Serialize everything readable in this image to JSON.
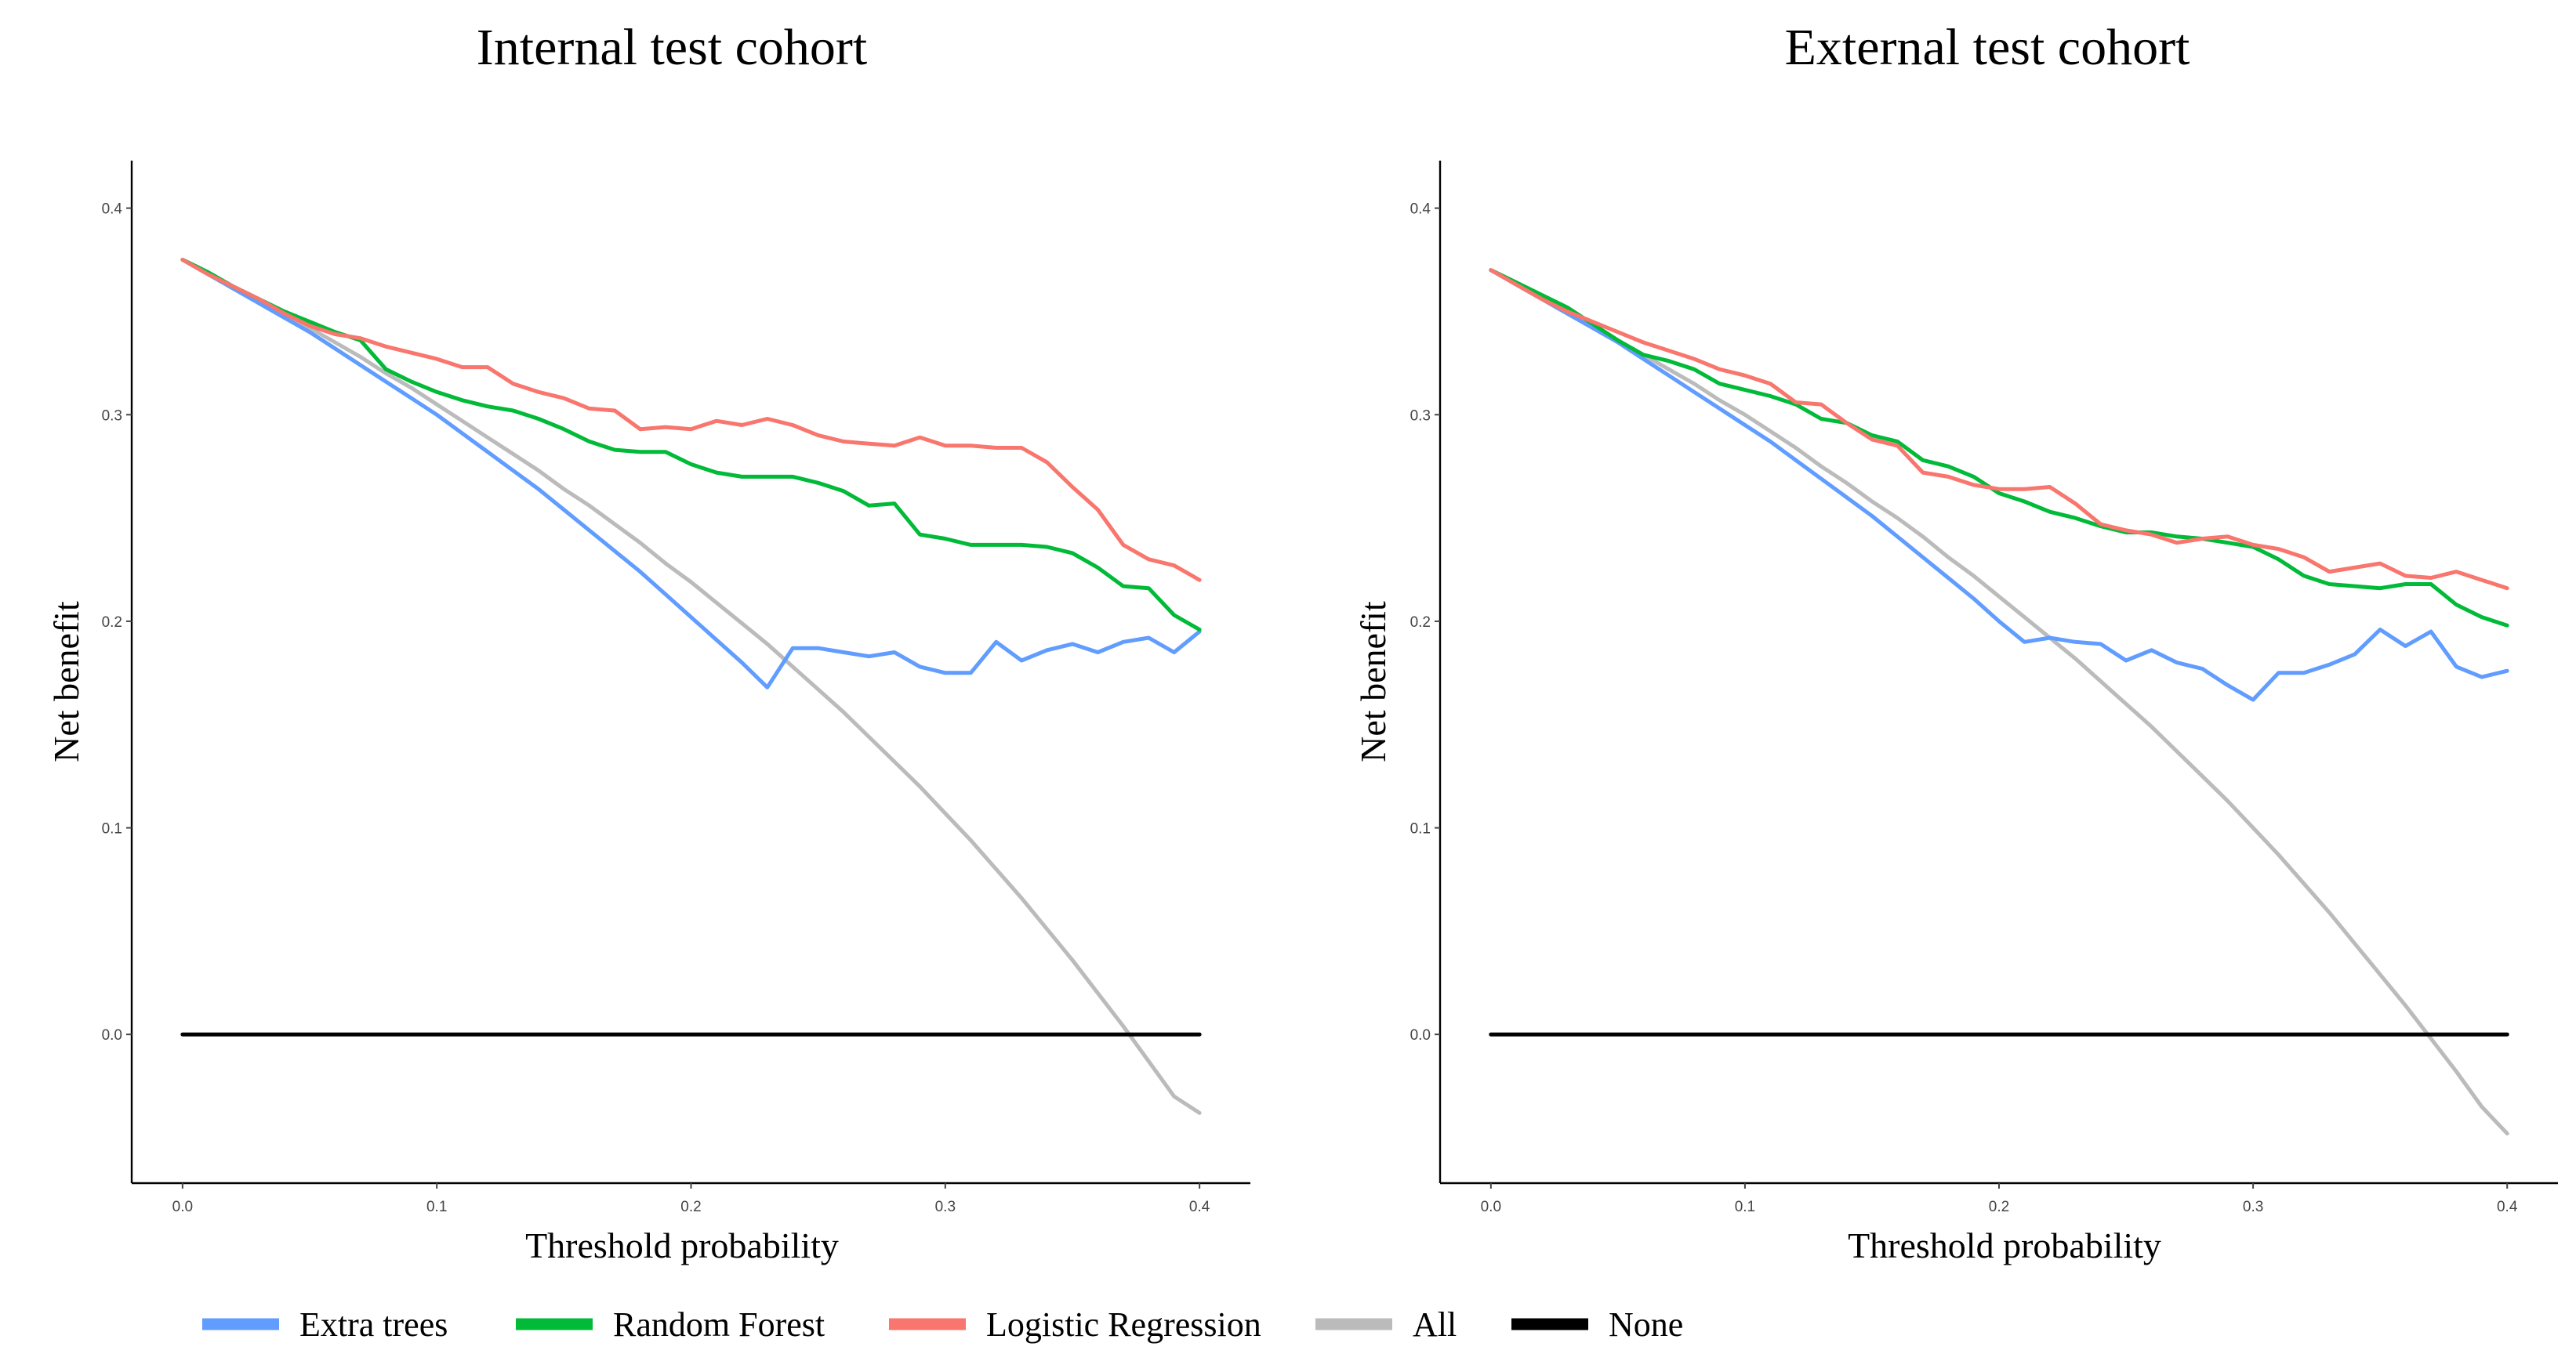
{
  "chart_data": [
    {
      "type": "line",
      "title": "Internal test cohort",
      "xlabel": "Threshold probability",
      "ylabel": "Net benefit",
      "xlim": [
        -0.02,
        0.42
      ],
      "ylim": [
        -0.072,
        0.423
      ],
      "xticks": [
        0.0,
        0.1,
        0.2,
        0.3,
        0.4
      ],
      "xtick_labels": [
        "0.0",
        "0.1",
        "0.2",
        "0.3",
        "0.4"
      ],
      "yticks": [
        0.0,
        0.1,
        0.2,
        0.3,
        0.4
      ],
      "ytick_labels": [
        "0.0",
        "0.1",
        "0.2",
        "0.3",
        "0.4"
      ],
      "grid": false,
      "x": [
        0.0,
        0.01,
        0.02,
        0.03,
        0.04,
        0.05,
        0.06,
        0.07,
        0.08,
        0.09,
        0.1,
        0.11,
        0.12,
        0.13,
        0.14,
        0.15,
        0.16,
        0.17,
        0.18,
        0.19,
        0.2,
        0.21,
        0.22,
        0.23,
        0.24,
        0.25,
        0.26,
        0.27,
        0.28,
        0.29,
        0.3,
        0.31,
        0.32,
        0.33,
        0.34,
        0.35,
        0.36,
        0.37,
        0.38,
        0.39,
        0.4
      ],
      "series": [
        {
          "name": "Extra trees",
          "color": "#619CFF",
          "values": [
            0.375,
            0.368,
            0.361,
            0.354,
            0.347,
            0.34,
            0.332,
            0.324,
            0.316,
            0.308,
            0.3,
            0.291,
            0.282,
            0.273,
            0.264,
            0.254,
            0.244,
            0.234,
            0.224,
            0.213,
            0.202,
            0.191,
            0.18,
            0.168,
            0.187,
            0.187,
            0.185,
            0.183,
            0.185,
            0.178,
            0.175,
            0.175,
            0.19,
            0.181,
            0.186,
            0.189,
            0.185,
            0.19,
            0.192,
            0.185,
            0.195
          ]
        },
        {
          "name": "Random Forest",
          "color": "#00BA38",
          "values": [
            0.375,
            0.369,
            0.362,
            0.356,
            0.35,
            0.345,
            0.34,
            0.336,
            0.322,
            0.316,
            0.311,
            0.307,
            0.304,
            0.302,
            0.298,
            0.293,
            0.287,
            0.283,
            0.282,
            0.282,
            0.276,
            0.272,
            0.27,
            0.27,
            0.27,
            0.267,
            0.263,
            0.256,
            0.257,
            0.242,
            0.24,
            0.237,
            0.237,
            0.237,
            0.236,
            0.233,
            0.226,
            0.217,
            0.216,
            0.203,
            0.196
          ]
        },
        {
          "name": "Logistic Regression",
          "color": "#F8766D",
          "values": [
            0.375,
            0.368,
            0.362,
            0.356,
            0.349,
            0.343,
            0.339,
            0.337,
            0.333,
            0.33,
            0.327,
            0.323,
            0.323,
            0.315,
            0.311,
            0.308,
            0.303,
            0.302,
            0.293,
            0.294,
            0.293,
            0.297,
            0.295,
            0.298,
            0.295,
            0.29,
            0.287,
            0.286,
            0.285,
            0.289,
            0.285,
            0.285,
            0.284,
            0.284,
            0.277,
            0.265,
            0.254,
            0.237,
            0.23,
            0.227,
            0.22
          ]
        },
        {
          "name": "All",
          "color": "#BBBBBB",
          "values": [
            0.375,
            0.369,
            0.362,
            0.356,
            0.349,
            0.342,
            0.335,
            0.328,
            0.32,
            0.313,
            0.305,
            0.297,
            0.289,
            0.281,
            0.273,
            0.264,
            0.256,
            0.247,
            0.238,
            0.228,
            0.219,
            0.209,
            0.199,
            0.189,
            0.178,
            0.167,
            0.156,
            0.144,
            0.132,
            0.12,
            0.107,
            0.094,
            0.08,
            0.066,
            0.051,
            0.036,
            0.02,
            0.004,
            -0.013,
            -0.03,
            -0.038
          ]
        },
        {
          "name": "None",
          "color": "#000000",
          "values": [
            0,
            0,
            0,
            0,
            0,
            0,
            0,
            0,
            0,
            0,
            0,
            0,
            0,
            0,
            0,
            0,
            0,
            0,
            0,
            0,
            0,
            0,
            0,
            0,
            0,
            0,
            0,
            0,
            0,
            0,
            0,
            0,
            0,
            0,
            0,
            0,
            0,
            0,
            0,
            0,
            0
          ]
        }
      ]
    },
    {
      "type": "line",
      "title": "External test cohort",
      "xlabel": "Threshold probability",
      "ylabel": "Net benefit",
      "xlim": [
        -0.02,
        0.42
      ],
      "ylim": [
        -0.072,
        0.423
      ],
      "xticks": [
        0.0,
        0.1,
        0.2,
        0.3,
        0.4
      ],
      "xtick_labels": [
        "0.0",
        "0.1",
        "0.2",
        "0.3",
        "0.4"
      ],
      "yticks": [
        0.0,
        0.1,
        0.2,
        0.3,
        0.4
      ],
      "ytick_labels": [
        "0.0",
        "0.1",
        "0.2",
        "0.3",
        "0.4"
      ],
      "grid": false,
      "x": [
        0.0,
        0.01,
        0.02,
        0.03,
        0.04,
        0.05,
        0.06,
        0.07,
        0.08,
        0.09,
        0.1,
        0.11,
        0.12,
        0.13,
        0.14,
        0.15,
        0.16,
        0.17,
        0.18,
        0.19,
        0.2,
        0.21,
        0.22,
        0.23,
        0.24,
        0.25,
        0.26,
        0.27,
        0.28,
        0.29,
        0.3,
        0.31,
        0.32,
        0.33,
        0.34,
        0.35,
        0.36,
        0.37,
        0.38,
        0.39,
        0.4
      ],
      "series": [
        {
          "name": "Extra trees",
          "color": "#619CFF",
          "values": [
            0.37,
            0.363,
            0.356,
            0.349,
            0.342,
            0.335,
            0.327,
            0.319,
            0.311,
            0.303,
            0.295,
            0.287,
            0.278,
            0.269,
            0.26,
            0.251,
            0.241,
            0.231,
            0.221,
            0.211,
            0.2,
            0.19,
            0.192,
            0.19,
            0.189,
            0.181,
            0.186,
            0.18,
            0.177,
            0.169,
            0.162,
            0.175,
            0.175,
            0.179,
            0.184,
            0.196,
            0.188,
            0.195,
            0.178,
            0.173,
            0.176
          ]
        },
        {
          "name": "Random Forest",
          "color": "#00BA38",
          "values": [
            0.37,
            0.364,
            0.358,
            0.352,
            0.344,
            0.336,
            0.329,
            0.326,
            0.322,
            0.315,
            0.312,
            0.309,
            0.305,
            0.298,
            0.296,
            0.29,
            0.287,
            0.278,
            0.275,
            0.27,
            0.262,
            0.258,
            0.253,
            0.25,
            0.246,
            0.243,
            0.243,
            0.241,
            0.24,
            0.238,
            0.236,
            0.23,
            0.222,
            0.218,
            0.217,
            0.216,
            0.218,
            0.218,
            0.208,
            0.202,
            0.198
          ]
        },
        {
          "name": "Logistic Regression",
          "color": "#F8766D",
          "values": [
            0.37,
            0.363,
            0.356,
            0.35,
            0.345,
            0.34,
            0.335,
            0.331,
            0.327,
            0.322,
            0.319,
            0.315,
            0.306,
            0.305,
            0.296,
            0.288,
            0.285,
            0.272,
            0.27,
            0.266,
            0.264,
            0.264,
            0.265,
            0.257,
            0.247,
            0.244,
            0.242,
            0.238,
            0.24,
            0.241,
            0.237,
            0.235,
            0.231,
            0.224,
            0.226,
            0.228,
            0.222,
            0.221,
            0.224,
            0.22,
            0.216
          ]
        },
        {
          "name": "All",
          "color": "#BBBBBB",
          "values": [
            0.37,
            0.364,
            0.357,
            0.35,
            0.343,
            0.336,
            0.329,
            0.322,
            0.315,
            0.307,
            0.3,
            0.292,
            0.284,
            0.275,
            0.267,
            0.258,
            0.25,
            0.241,
            0.231,
            0.222,
            0.212,
            0.202,
            0.192,
            0.182,
            0.171,
            0.16,
            0.149,
            0.137,
            0.125,
            0.113,
            0.1,
            0.087,
            0.073,
            0.059,
            0.044,
            0.029,
            0.014,
            -0.002,
            -0.018,
            -0.035,
            -0.048
          ]
        },
        {
          "name": "None",
          "color": "#000000",
          "values": [
            0,
            0,
            0,
            0,
            0,
            0,
            0,
            0,
            0,
            0,
            0,
            0,
            0,
            0,
            0,
            0,
            0,
            0,
            0,
            0,
            0,
            0,
            0,
            0,
            0,
            0,
            0,
            0,
            0,
            0,
            0,
            0,
            0,
            0,
            0,
            0,
            0,
            0,
            0,
            0,
            0
          ]
        }
      ]
    }
  ],
  "legend": {
    "placement": "bottom",
    "items": [
      {
        "name": "Extra trees",
        "color": "#619CFF"
      },
      {
        "name": "Random Forest",
        "color": "#00BA38"
      },
      {
        "name": "Logistic Regression",
        "color": "#F8766D"
      },
      {
        "name": "All",
        "color": "#BBBBBB"
      },
      {
        "name": "None",
        "color": "#000000"
      }
    ]
  }
}
